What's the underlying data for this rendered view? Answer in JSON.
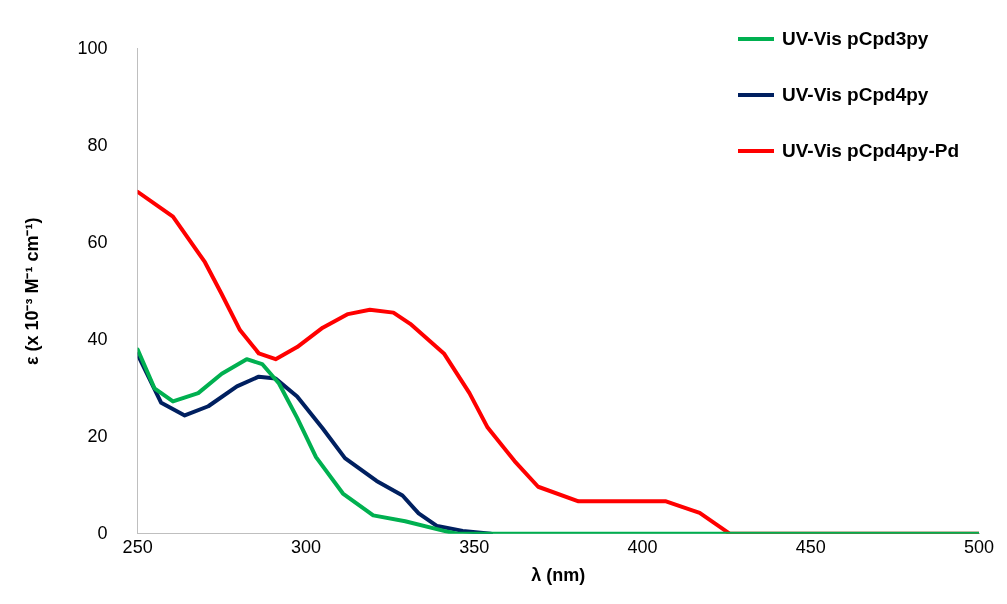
{
  "chart_data": {
    "type": "line",
    "xlabel": "λ (nm)",
    "ylabel": "ε (x 10⁻³ M⁻¹ cm⁻¹)",
    "xlim": [
      250,
      500
    ],
    "xticks": [
      250,
      300,
      350,
      400,
      450,
      500
    ],
    "ylim": [
      0,
      100
    ],
    "yticks": [
      0,
      20,
      40,
      60,
      80,
      100
    ],
    "grid": false,
    "legend": "top right",
    "marker": "none",
    "line_style": "solid",
    "series": [
      {
        "name": "UV-Vis pCpd3py",
        "color": "#00b050",
        "x": [
          250,
          255,
          260.5,
          268,
          275,
          282.4,
          287,
          292,
          297.4,
          303,
          311,
          320,
          329.5,
          341,
          345,
          400,
          500
        ],
        "values": [
          38,
          30,
          27.3,
          29,
          33,
          36,
          35,
          31,
          23.9,
          15.8,
          8.3,
          3.8,
          2.6,
          0.6,
          0,
          0,
          0
        ]
      },
      {
        "name": "UV-Vis pCpd4py",
        "color": "#002060",
        "x": [
          250,
          257,
          264,
          271,
          279.5,
          286,
          291,
          297.4,
          305,
          311.6,
          321,
          328.7,
          333.5,
          339,
          346.6,
          355
        ],
        "values": [
          37,
          27,
          24.4,
          26.3,
          30.4,
          32.4,
          32,
          28.3,
          21.7,
          15.6,
          10.9,
          7.9,
          4.2,
          1.6,
          0.6,
          0
        ]
      },
      {
        "name": "UV-Vis pCpd4py-Pd",
        "color": "#ff0000",
        "x": [
          250,
          260.5,
          270,
          275,
          280.4,
          286,
          291,
          297.4,
          305,
          312.5,
          319,
          326,
          331,
          341,
          348.6,
          354,
          362,
          369,
          381,
          395,
          407,
          417,
          426,
          500
        ],
        "values": [
          70.5,
          65.4,
          56,
          49.4,
          42,
          37.2,
          36,
          38.5,
          42.5,
          45.3,
          46.2,
          45.6,
          43.3,
          37.2,
          29,
          21.9,
          15,
          9.7,
          6.7,
          6.7,
          6.7,
          4.3,
          0,
          0
        ]
      }
    ]
  }
}
